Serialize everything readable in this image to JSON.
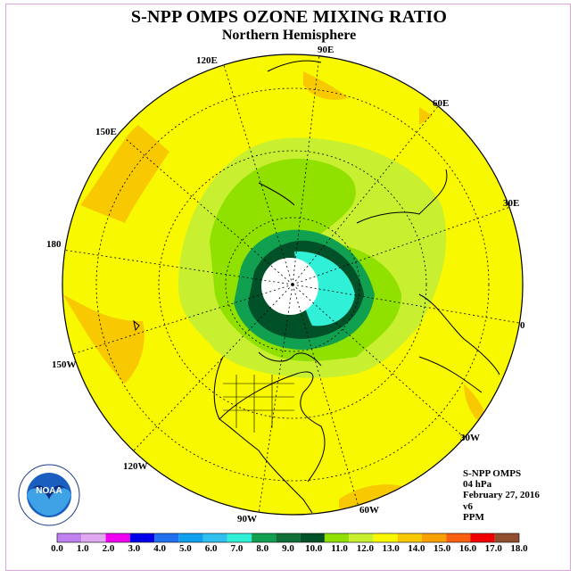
{
  "title": "S-NPP OMPS OZONE MIXING RATIO",
  "subtitle": "Northern Hemisphere",
  "longitude_labels": {
    "e90": "90E",
    "e60": "60E",
    "e30": "30E",
    "zero": "0",
    "w30": "30W",
    "w60": "60W",
    "w90": "90W",
    "w120": "120W",
    "w150": "150W",
    "lon180": "180",
    "e150": "150E",
    "e120": "120E"
  },
  "info": {
    "instrument": "S-NPP OMPS",
    "level": "04 hPa",
    "date": "February 27, 2016",
    "version": "v6",
    "units": "PPM"
  },
  "logo": {
    "text": "NOAA",
    "ring_text": "NATIONAL OCEANIC AND ATMOSPHERIC ADMINISTRATION · U.S. DEPARTMENT OF COMMERCE"
  },
  "colorbar": {
    "ticks": [
      "0.0",
      "1.0",
      "2.0",
      "3.0",
      "4.0",
      "5.0",
      "6.0",
      "7.0",
      "8.0",
      "9.0",
      "10.0",
      "11.0",
      "12.0",
      "13.0",
      "14.0",
      "15.0",
      "16.0",
      "17.0",
      "18.0"
    ],
    "colors": [
      "#c080f0",
      "#e0a8f0",
      "#f000f0",
      "#0000e8",
      "#2070f0",
      "#10a0f0",
      "#30c0f0",
      "#30f0d8",
      "#10a050",
      "#107038",
      "#005028",
      "#90e000",
      "#c8f030",
      "#f8f800",
      "#f8c800",
      "#f8a000",
      "#f86010",
      "#f00000",
      "#905030"
    ]
  },
  "colors": {
    "background_field": "#f8f800",
    "orange_band": "#f8c800",
    "green_light": "#c8f030",
    "green_mid": "#90e000",
    "green_dark": "#10a050",
    "green_darker": "#005028",
    "cyan": "#30f0d8",
    "missing": "#ffffff"
  }
}
